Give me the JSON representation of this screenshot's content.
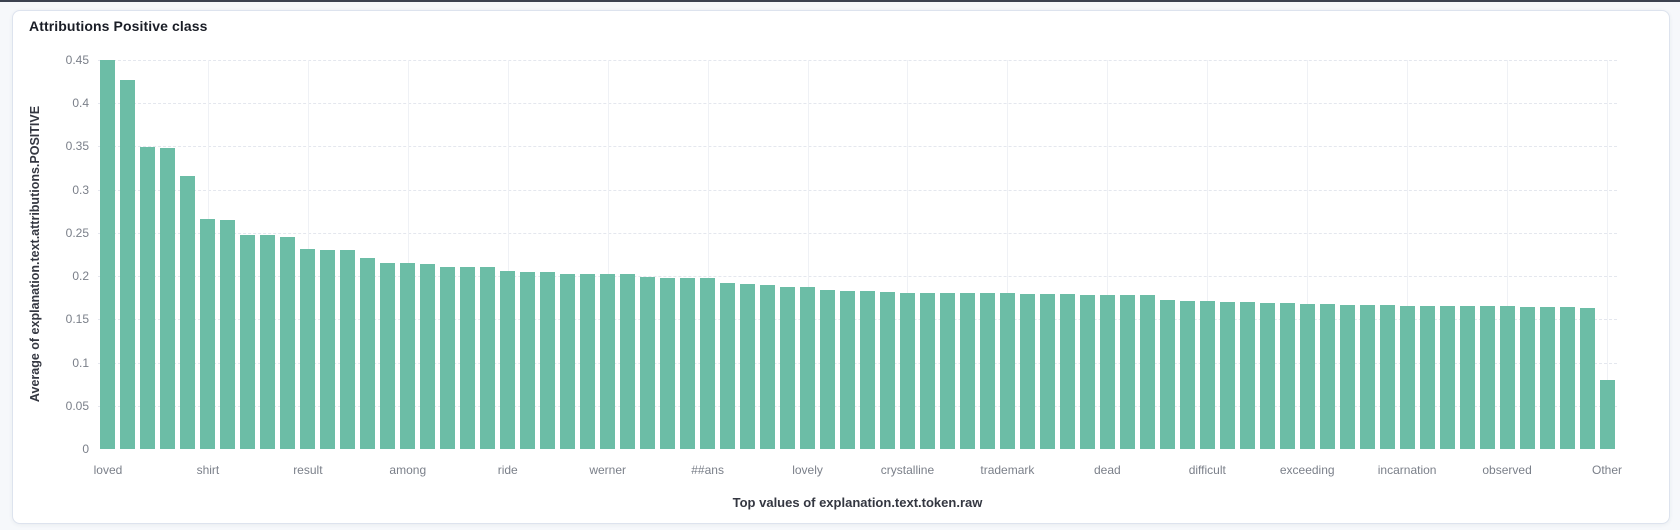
{
  "panel": {
    "title": "Attributions Positive class"
  },
  "chart_data": {
    "type": "bar",
    "title": "Attributions Positive class",
    "xlabel": "Top values of explanation.text.token.raw",
    "ylabel": "Average of explanation.text.attributions.POSITIVE",
    "ylim": [
      0,
      0.45
    ],
    "y_ticks": [
      0,
      0.05,
      0.1,
      0.15,
      0.2,
      0.25,
      0.3,
      0.35,
      0.4,
      0.45
    ],
    "y_tick_labels": [
      "0",
      "0.05",
      "0.1",
      "0.15",
      "0.2",
      "0.25",
      "0.3",
      "0.35",
      "0.4",
      "0.45"
    ],
    "grid": true,
    "legend": "none",
    "bar_color": "#6cbda6",
    "bar_count": 76,
    "x_tick_every": 5,
    "x_tick_labels": [
      "loved",
      "shirt",
      "result",
      "among",
      "ride",
      "werner",
      "##ans",
      "lovely",
      "crystalline",
      "trademark",
      "dead",
      "difficult",
      "exceeding",
      "incarnation",
      "observed",
      "Other"
    ],
    "values": [
      0.45,
      0.427,
      0.349,
      0.348,
      0.316,
      0.266,
      0.265,
      0.248,
      0.247,
      0.245,
      0.231,
      0.23,
      0.23,
      0.221,
      0.215,
      0.215,
      0.214,
      0.211,
      0.211,
      0.21,
      0.206,
      0.205,
      0.205,
      0.203,
      0.203,
      0.202,
      0.202,
      0.199,
      0.198,
      0.198,
      0.198,
      0.192,
      0.191,
      0.19,
      0.188,
      0.187,
      0.184,
      0.183,
      0.183,
      0.182,
      0.181,
      0.181,
      0.181,
      0.18,
      0.18,
      0.18,
      0.179,
      0.179,
      0.179,
      0.178,
      0.178,
      0.178,
      0.178,
      0.172,
      0.171,
      0.171,
      0.17,
      0.17,
      0.169,
      0.169,
      0.168,
      0.168,
      0.167,
      0.167,
      0.167,
      0.166,
      0.166,
      0.166,
      0.165,
      0.165,
      0.165,
      0.164,
      0.164,
      0.164,
      0.163,
      0.08
    ]
  }
}
